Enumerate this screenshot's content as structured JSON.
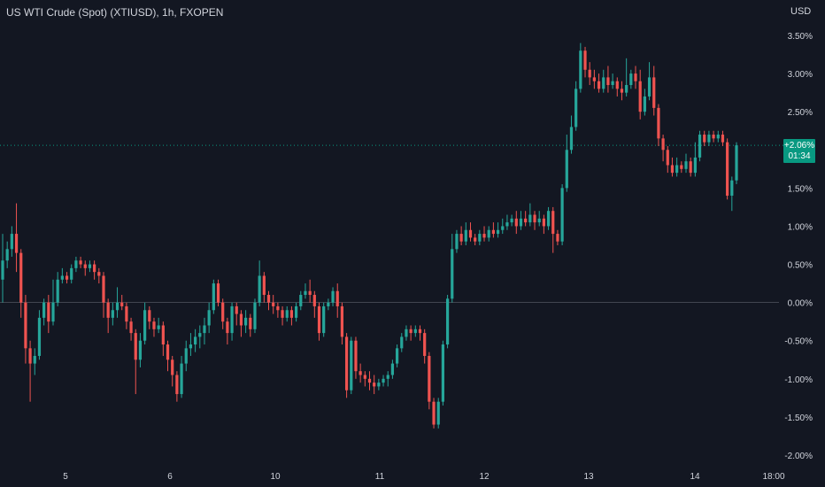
{
  "header": {
    "title": "US WTI Crude (Spot) (XTIUSD), 1h, FXOPEN",
    "currency": "USD"
  },
  "last_price_tag": {
    "change": "+2.06%",
    "countdown": "01:34"
  },
  "colors": {
    "background": "#131722",
    "up": "#26a69a",
    "down": "#ef5350",
    "grid_text": "#d1d4dc",
    "tag_bg": "#089981",
    "zero_line": "#b2b5be",
    "last_price_line": "#089981"
  },
  "chart_data": {
    "type": "candlestick",
    "title": "US WTI Crude (Spot) (XTIUSD), 1h, FXOPEN",
    "y_unit": "%",
    "ylim": [
      -2.0,
      3.5
    ],
    "y_ticks": [
      "3.50%",
      "3.00%",
      "2.50%",
      "2.00%",
      "1.50%",
      "1.00%",
      "0.50%",
      "0.00%",
      "-0.50%",
      "-1.00%",
      "-1.50%",
      "-2.00%"
    ],
    "x_ticks": [
      "5",
      "6",
      "10",
      "11",
      "12",
      "13",
      "14",
      "18:00"
    ],
    "last_value": 2.06,
    "candles": [
      [
        0.3,
        0.55,
        0.0,
        0.9
      ],
      [
        0.55,
        0.7,
        0.45,
        0.8
      ],
      [
        0.7,
        0.9,
        0.6,
        1.0
      ],
      [
        0.9,
        0.65,
        0.4,
        1.3
      ],
      [
        0.65,
        0.0,
        -0.2,
        0.7
      ],
      [
        0.0,
        -0.6,
        -0.8,
        0.1
      ],
      [
        -0.6,
        -0.8,
        -1.3,
        -0.5
      ],
      [
        -0.8,
        -0.7,
        -0.95,
        -0.6
      ],
      [
        -0.7,
        -0.2,
        -0.75,
        -0.1
      ],
      [
        -0.2,
        0.0,
        -0.3,
        0.05
      ],
      [
        0.0,
        -0.25,
        -0.4,
        0.1
      ],
      [
        -0.25,
        0.0,
        -0.3,
        0.3
      ],
      [
        0.0,
        0.3,
        -0.05,
        0.4
      ],
      [
        0.3,
        0.35,
        0.25,
        0.45
      ],
      [
        0.35,
        0.3,
        0.25,
        0.4
      ],
      [
        0.3,
        0.45,
        0.25,
        0.5
      ],
      [
        0.45,
        0.55,
        0.4,
        0.6
      ],
      [
        0.55,
        0.5,
        0.45,
        0.6
      ],
      [
        0.5,
        0.45,
        0.35,
        0.55
      ],
      [
        0.45,
        0.5,
        0.4,
        0.55
      ],
      [
        0.5,
        0.4,
        0.3,
        0.55
      ],
      [
        0.4,
        0.35,
        0.25,
        0.45
      ],
      [
        0.35,
        0.0,
        -0.2,
        0.4
      ],
      [
        0.0,
        -0.2,
        -0.4,
        0.05
      ],
      [
        -0.2,
        -0.1,
        -0.3,
        0.0
      ],
      [
        -0.1,
        0.0,
        -0.2,
        0.2
      ],
      [
        0.0,
        -0.05,
        -0.1,
        0.1
      ],
      [
        -0.05,
        -0.25,
        -0.35,
        0.0
      ],
      [
        -0.25,
        -0.4,
        -0.5,
        -0.2
      ],
      [
        -0.4,
        -0.75,
        -1.2,
        -0.35
      ],
      [
        -0.75,
        -0.5,
        -0.85,
        -0.4
      ],
      [
        -0.5,
        -0.1,
        -0.55,
        0.0
      ],
      [
        -0.1,
        -0.25,
        -0.35,
        -0.05
      ],
      [
        -0.25,
        -0.35,
        -0.45,
        -0.2
      ],
      [
        -0.35,
        -0.3,
        -0.4,
        -0.2
      ],
      [
        -0.3,
        -0.55,
        -0.7,
        -0.25
      ],
      [
        -0.55,
        -0.75,
        -0.9,
        -0.5
      ],
      [
        -0.75,
        -0.95,
        -1.1,
        -0.7
      ],
      [
        -0.95,
        -1.2,
        -1.3,
        -0.9
      ],
      [
        -1.2,
        -0.8,
        -1.25,
        -0.7
      ],
      [
        -0.8,
        -0.6,
        -0.9,
        -0.5
      ],
      [
        -0.6,
        -0.55,
        -0.7,
        -0.4
      ],
      [
        -0.55,
        -0.45,
        -0.65,
        -0.35
      ],
      [
        -0.45,
        -0.4,
        -0.6,
        -0.3
      ],
      [
        -0.4,
        -0.3,
        -0.55,
        -0.2
      ],
      [
        -0.3,
        -0.1,
        -0.4,
        0.0
      ],
      [
        -0.1,
        0.25,
        -0.15,
        0.3
      ],
      [
        0.25,
        0.0,
        -0.05,
        0.3
      ],
      [
        0.0,
        -0.25,
        -0.35,
        0.05
      ],
      [
        -0.25,
        -0.4,
        -0.55,
        -0.2
      ],
      [
        -0.4,
        -0.05,
        -0.5,
        0.0
      ],
      [
        -0.05,
        -0.15,
        -0.3,
        0.0
      ],
      [
        -0.15,
        -0.3,
        -0.45,
        -0.1
      ],
      [
        -0.3,
        -0.2,
        -0.4,
        -0.1
      ],
      [
        -0.2,
        -0.35,
        -0.45,
        -0.15
      ],
      [
        -0.35,
        0.0,
        -0.4,
        0.05
      ],
      [
        0.0,
        0.35,
        -0.05,
        0.55
      ],
      [
        0.35,
        0.1,
        0.0,
        0.4
      ],
      [
        0.1,
        0.0,
        -0.1,
        0.15
      ],
      [
        0.0,
        -0.05,
        -0.15,
        0.1
      ],
      [
        -0.05,
        -0.1,
        -0.2,
        0.0
      ],
      [
        -0.1,
        -0.2,
        -0.3,
        -0.05
      ],
      [
        -0.2,
        -0.1,
        -0.25,
        -0.05
      ],
      [
        -0.1,
        -0.2,
        -0.3,
        -0.05
      ],
      [
        -0.2,
        -0.05,
        -0.25,
        0.0
      ],
      [
        -0.05,
        0.1,
        -0.1,
        0.15
      ],
      [
        0.1,
        0.15,
        0.05,
        0.25
      ],
      [
        0.15,
        0.1,
        0.0,
        0.3
      ],
      [
        0.1,
        -0.05,
        -0.2,
        0.15
      ],
      [
        -0.05,
        -0.4,
        -0.5,
        0.0
      ],
      [
        -0.4,
        -0.05,
        -0.45,
        0.0
      ],
      [
        -0.05,
        0.0,
        -0.1,
        0.05
      ],
      [
        0.0,
        0.15,
        -0.05,
        0.2
      ],
      [
        0.15,
        -0.05,
        -0.2,
        0.25
      ],
      [
        -0.05,
        -0.45,
        -0.55,
        0.0
      ],
      [
        -0.45,
        -1.15,
        -1.25,
        -0.4
      ],
      [
        -1.15,
        -0.5,
        -1.2,
        -0.45
      ],
      [
        -0.5,
        -0.9,
        -1.0,
        -0.45
      ],
      [
        -0.9,
        -0.95,
        -1.05,
        -0.8
      ],
      [
        -0.95,
        -1.0,
        -1.1,
        -0.9
      ],
      [
        -1.0,
        -1.05,
        -1.15,
        -0.9
      ],
      [
        -1.05,
        -1.1,
        -1.2,
        -0.95
      ],
      [
        -1.1,
        -1.05,
        -1.15,
        -1.0
      ],
      [
        -1.05,
        -1.0,
        -1.1,
        -0.95
      ],
      [
        -1.0,
        -0.95,
        -1.1,
        -0.9
      ],
      [
        -0.95,
        -0.8,
        -1.0,
        -0.75
      ],
      [
        -0.8,
        -0.6,
        -0.85,
        -0.55
      ],
      [
        -0.6,
        -0.45,
        -0.65,
        -0.4
      ],
      [
        -0.45,
        -0.35,
        -0.5,
        -0.3
      ],
      [
        -0.35,
        -0.4,
        -0.5,
        -0.3
      ],
      [
        -0.4,
        -0.35,
        -0.45,
        -0.3
      ],
      [
        -0.35,
        -0.4,
        -0.5,
        -0.3
      ],
      [
        -0.4,
        -0.7,
        -0.8,
        -0.35
      ],
      [
        -0.7,
        -1.3,
        -1.4,
        -0.65
      ],
      [
        -1.3,
        -1.6,
        -1.65,
        -1.25
      ],
      [
        -1.6,
        -1.3,
        -1.65,
        -1.25
      ],
      [
        -1.3,
        -0.55,
        -1.35,
        -0.5
      ],
      [
        -0.55,
        0.05,
        -0.6,
        0.1
      ],
      [
        0.05,
        0.7,
        0.0,
        0.9
      ],
      [
        0.7,
        0.9,
        0.65,
        0.95
      ],
      [
        0.9,
        0.8,
        0.75,
        1.0
      ],
      [
        0.8,
        0.95,
        0.75,
        1.05
      ],
      [
        0.95,
        0.85,
        0.8,
        1.05
      ],
      [
        0.85,
        0.8,
        0.75,
        0.9
      ],
      [
        0.8,
        0.9,
        0.75,
        0.95
      ],
      [
        0.9,
        0.85,
        0.8,
        1.0
      ],
      [
        0.85,
        0.95,
        0.8,
        1.0
      ],
      [
        0.95,
        0.9,
        0.85,
        1.05
      ],
      [
        0.9,
        0.95,
        0.85,
        1.05
      ],
      [
        0.95,
        1.0,
        0.9,
        1.1
      ],
      [
        1.0,
        1.05,
        0.95,
        1.15
      ],
      [
        1.05,
        1.1,
        1.0,
        1.15
      ],
      [
        1.1,
        1.0,
        0.9,
        1.2
      ],
      [
        1.0,
        1.1,
        0.95,
        1.2
      ],
      [
        1.1,
        1.05,
        1.0,
        1.2
      ],
      [
        1.05,
        1.15,
        1.0,
        1.3
      ],
      [
        1.15,
        1.05,
        0.95,
        1.2
      ],
      [
        1.05,
        1.1,
        1.0,
        1.2
      ],
      [
        1.1,
        1.0,
        0.9,
        1.15
      ],
      [
        1.0,
        1.2,
        0.95,
        1.25
      ],
      [
        1.2,
        0.9,
        0.65,
        1.25
      ],
      [
        0.9,
        0.8,
        0.75,
        0.95
      ],
      [
        0.8,
        1.5,
        0.75,
        1.55
      ],
      [
        1.5,
        2.0,
        1.45,
        2.2
      ],
      [
        2.0,
        2.3,
        1.95,
        2.45
      ],
      [
        2.3,
        2.8,
        2.25,
        2.9
      ],
      [
        2.8,
        3.3,
        2.75,
        3.4
      ],
      [
        3.3,
        3.05,
        2.95,
        3.35
      ],
      [
        3.05,
        2.95,
        2.85,
        3.15
      ],
      [
        2.95,
        2.9,
        2.8,
        3.05
      ],
      [
        2.9,
        2.8,
        2.75,
        3.0
      ],
      [
        2.8,
        2.95,
        2.75,
        3.05
      ],
      [
        2.95,
        2.85,
        2.75,
        3.1
      ],
      [
        2.85,
        2.9,
        2.8,
        3.0
      ],
      [
        2.9,
        2.8,
        2.7,
        2.95
      ],
      [
        2.8,
        2.75,
        2.65,
        2.9
      ],
      [
        2.75,
        2.85,
        2.7,
        3.2
      ],
      [
        2.85,
        3.0,
        2.8,
        3.05
      ],
      [
        3.0,
        2.9,
        2.8,
        3.1
      ],
      [
        2.9,
        2.5,
        2.4,
        3.05
      ],
      [
        2.5,
        2.7,
        2.45,
        2.8
      ],
      [
        2.7,
        2.95,
        2.65,
        3.15
      ],
      [
        2.95,
        2.55,
        2.45,
        3.1
      ],
      [
        2.55,
        2.15,
        2.05,
        2.6
      ],
      [
        2.15,
        2.0,
        1.85,
        2.2
      ],
      [
        2.0,
        1.8,
        1.7,
        2.05
      ],
      [
        1.8,
        1.7,
        1.65,
        1.9
      ],
      [
        1.7,
        1.8,
        1.65,
        1.9
      ],
      [
        1.8,
        1.75,
        1.7,
        1.85
      ],
      [
        1.75,
        1.85,
        1.7,
        1.95
      ],
      [
        1.85,
        1.7,
        1.65,
        1.9
      ],
      [
        1.7,
        1.9,
        1.65,
        2.1
      ],
      [
        1.9,
        2.2,
        1.85,
        2.25
      ],
      [
        2.2,
        2.1,
        2.05,
        2.25
      ],
      [
        2.1,
        2.2,
        2.05,
        2.25
      ],
      [
        2.2,
        2.15,
        2.1,
        2.25
      ],
      [
        2.15,
        2.2,
        2.1,
        2.25
      ],
      [
        2.2,
        2.1,
        2.05,
        2.25
      ],
      [
        2.1,
        1.4,
        1.35,
        2.15
      ],
      [
        1.4,
        1.6,
        1.2,
        1.65
      ],
      [
        1.6,
        2.06,
        1.55,
        2.1
      ]
    ]
  }
}
